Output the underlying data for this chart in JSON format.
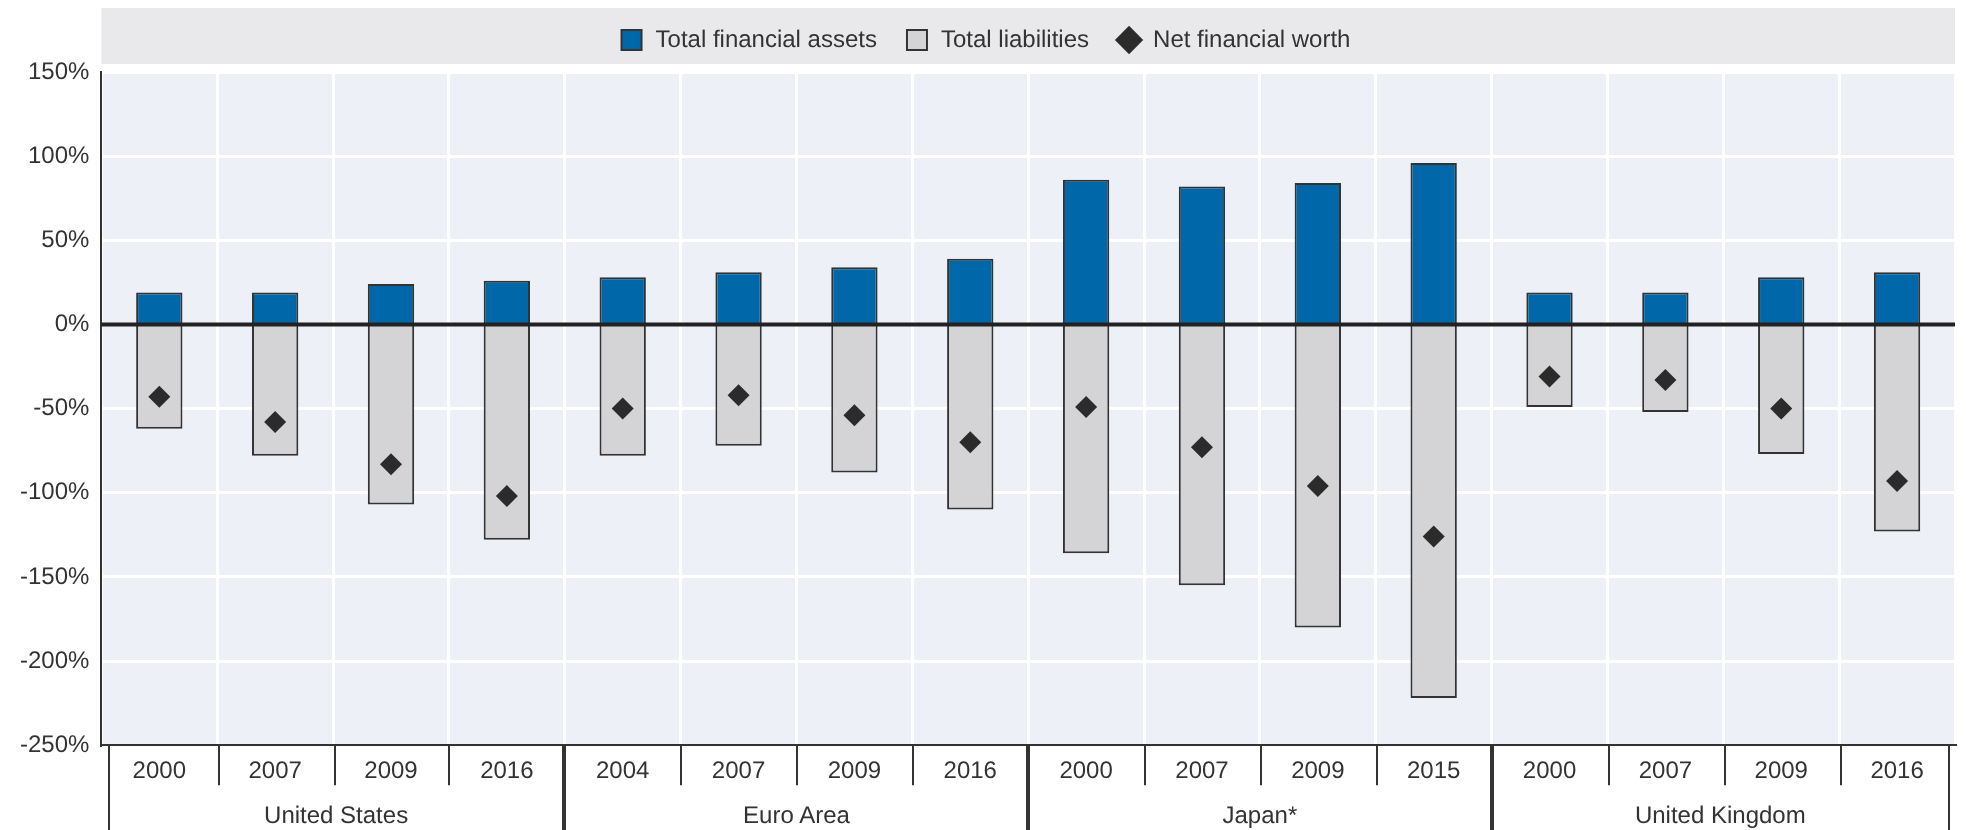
{
  "chart_data": {
    "type": "bar",
    "stacked": true,
    "legend": "top",
    "grid": true,
    "marker": "diamond",
    "categories": [
      "2000",
      "2007",
      "2009",
      "2016",
      "2004",
      "2007",
      "2009",
      "2016",
      "2000",
      "2007",
      "2009",
      "2015",
      "2000",
      "2007",
      "2009",
      "2016"
    ],
    "series": [
      {
        "name": "Total financial assets",
        "color": "#0068a8",
        "values": [
          19,
          19,
          24,
          26,
          28,
          31,
          34,
          39,
          86,
          82,
          84,
          96,
          19,
          19,
          28,
          31
        ]
      },
      {
        "name": "Total liabilities",
        "color": "#d4d4d6",
        "values": [
          -62,
          -78,
          -107,
          -128,
          -78,
          -72,
          -88,
          -110,
          -136,
          -155,
          -180,
          -222,
          -49,
          -52,
          -77,
          -123
        ]
      },
      {
        "name": "Net financial worth",
        "type": "scatter",
        "color": "#2b2b2b",
        "values": [
          -43,
          -58,
          -83,
          -102,
          -50,
          -42,
          -54,
          -70,
          -49,
          -73,
          -96,
          -126,
          -31,
          -33,
          -50,
          -93
        ]
      }
    ],
    "ylim": [
      -250,
      150
    ],
    "yticks": [
      {
        "value": -250,
        "label": "-250%"
      },
      {
        "value": -200,
        "label": "-200%"
      },
      {
        "value": -150,
        "label": "-150%"
      },
      {
        "value": -100,
        "label": "-100%"
      },
      {
        "value": -50,
        "label": "-50%"
      },
      {
        "value": 0,
        "label": "0%"
      },
      {
        "value": 50,
        "label": "50%"
      },
      {
        "value": 100,
        "label": "100%"
      },
      {
        "value": 150,
        "label": "150%"
      }
    ],
    "annotations": [
      "United States",
      "Euro Area",
      "Japan*",
      "United Kingdom"
    ]
  }
}
